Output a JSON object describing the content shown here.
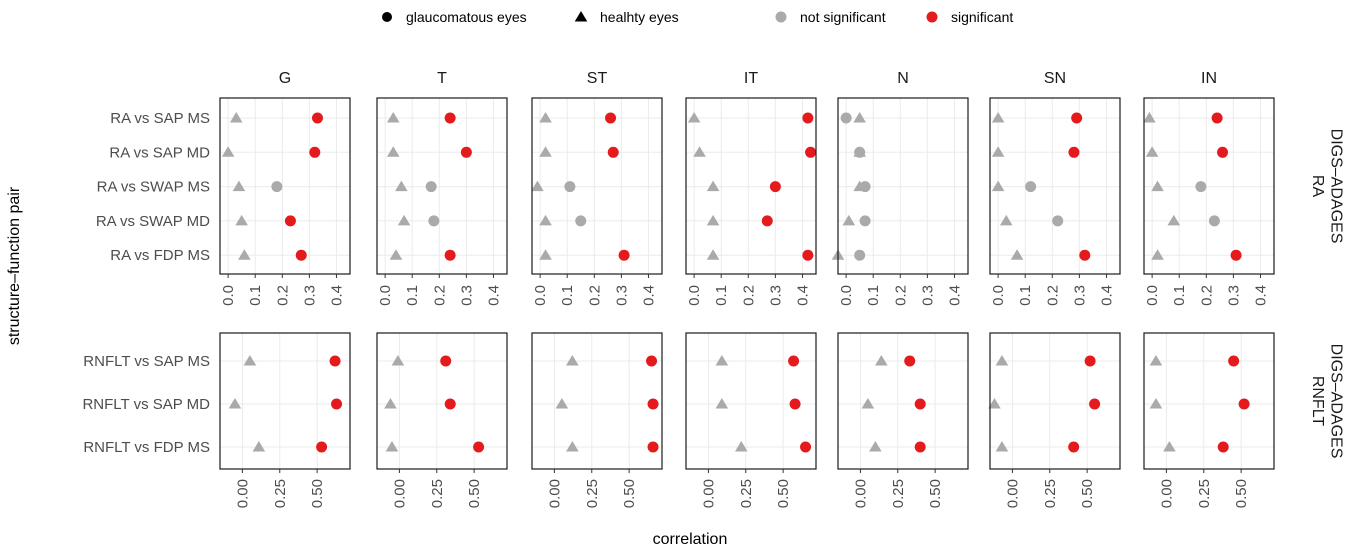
{
  "legend": {
    "shape_items": [
      {
        "label": "glaucomatous eyes",
        "shape": "circle"
      },
      {
        "label": "healhty eyes",
        "shape": "triangle"
      }
    ],
    "color_items": [
      {
        "label": "not significant",
        "color": "#aaaaaa"
      },
      {
        "label": "significant",
        "color": "#e41a1c"
      }
    ],
    "placement": "top"
  },
  "colors": {
    "not_significant": "#aaaaaa",
    "significant": "#e41a1c"
  },
  "chart_data": {
    "type": "scatter",
    "facet_layout": "grid",
    "x_title": "correlation",
    "y_title": "structure–function pair",
    "columns": [
      "G",
      "T",
      "ST",
      "IT",
      "N",
      "SN",
      "IN"
    ],
    "grid": true,
    "rows": [
      {
        "strip": [
          "DIGS–ADAGES",
          "RA"
        ],
        "pairs": [
          "RA vs SAP MS",
          "RA vs SAP MD",
          "RA vs SWAP MS",
          "RA vs SWAP MD",
          "RA vs FDP MS"
        ],
        "xlim": [
          -0.03,
          0.45
        ],
        "ticks": [
          0,
          0.1,
          0.2,
          0.3,
          0.4
        ],
        "tick_labels": [
          "0.0",
          "0.1",
          "0.2",
          "0.3",
          "0.4"
        ],
        "panels": [
          {
            "healthy": [
              [
                0.03,
                false
              ],
              [
                0.0,
                false
              ],
              [
                0.04,
                false
              ],
              [
                0.05,
                false
              ],
              [
                0.06,
                false
              ]
            ],
            "glaucomatous": [
              [
                0.33,
                true
              ],
              [
                0.32,
                true
              ],
              [
                0.18,
                false
              ],
              [
                0.23,
                true
              ],
              [
                0.27,
                true
              ]
            ]
          },
          {
            "healthy": [
              [
                0.03,
                false
              ],
              [
                0.03,
                false
              ],
              [
                0.06,
                false
              ],
              [
                0.07,
                false
              ],
              [
                0.04,
                false
              ]
            ],
            "glaucomatous": [
              [
                0.24,
                true
              ],
              [
                0.3,
                true
              ],
              [
                0.17,
                false
              ],
              [
                0.18,
                false
              ],
              [
                0.24,
                true
              ]
            ]
          },
          {
            "healthy": [
              [
                0.02,
                false
              ],
              [
                0.02,
                false
              ],
              [
                -0.01,
                false
              ],
              [
                0.02,
                false
              ],
              [
                0.02,
                false
              ]
            ],
            "glaucomatous": [
              [
                0.26,
                true
              ],
              [
                0.27,
                true
              ],
              [
                0.11,
                false
              ],
              [
                0.15,
                false
              ],
              [
                0.31,
                true
              ]
            ]
          },
          {
            "healthy": [
              [
                0.0,
                false
              ],
              [
                0.02,
                false
              ],
              [
                0.07,
                false
              ],
              [
                0.07,
                false
              ],
              [
                0.07,
                false
              ]
            ],
            "glaucomatous": [
              [
                0.42,
                true
              ],
              [
                0.43,
                true
              ],
              [
                0.3,
                true
              ],
              [
                0.27,
                true
              ],
              [
                0.42,
                true
              ]
            ]
          },
          {
            "healthy": [
              [
                0.05,
                false
              ],
              [
                0.05,
                false
              ],
              [
                0.05,
                false
              ],
              [
                0.01,
                false
              ],
              [
                -0.03,
                false
              ]
            ],
            "glaucomatous": [
              [
                -0.0,
                false
              ],
              [
                0.05,
                false
              ],
              [
                0.07,
                false
              ],
              [
                0.07,
                false
              ],
              [
                0.05,
                false
              ]
            ]
          },
          {
            "healthy": [
              [
                0.0,
                false
              ],
              [
                0.0,
                false
              ],
              [
                0.0,
                false
              ],
              [
                0.03,
                false
              ],
              [
                0.07,
                false
              ]
            ],
            "glaucomatous": [
              [
                0.29,
                true
              ],
              [
                0.28,
                true
              ],
              [
                0.12,
                false
              ],
              [
                0.22,
                false
              ],
              [
                0.32,
                true
              ]
            ]
          },
          {
            "healthy": [
              [
                -0.01,
                false
              ],
              [
                0.0,
                false
              ],
              [
                0.02,
                false
              ],
              [
                0.08,
                false
              ],
              [
                0.02,
                false
              ]
            ],
            "glaucomatous": [
              [
                0.24,
                true
              ],
              [
                0.26,
                true
              ],
              [
                0.18,
                false
              ],
              [
                0.23,
                false
              ],
              [
                0.31,
                true
              ]
            ]
          }
        ]
      },
      {
        "strip": [
          "DIGS–ADAGES",
          "RNFLT"
        ],
        "pairs": [
          "RNFLT vs SAP MS",
          "RNFLT vs SAP MD",
          "RNFLT vs FDP MS"
        ],
        "xlim": [
          -0.15,
          0.72
        ],
        "ticks": [
          0,
          0.25,
          0.5
        ],
        "tick_labels": [
          "0.00",
          "0.25",
          "0.50"
        ],
        "panels": [
          {
            "healthy": [
              [
                0.05,
                false
              ],
              [
                -0.05,
                false
              ],
              [
                0.11,
                false
              ]
            ],
            "glaucomatous": [
              [
                0.62,
                true
              ],
              [
                0.63,
                true
              ],
              [
                0.53,
                true
              ]
            ]
          },
          {
            "healthy": [
              [
                -0.01,
                false
              ],
              [
                -0.06,
                false
              ],
              [
                -0.05,
                false
              ]
            ],
            "glaucomatous": [
              [
                0.31,
                true
              ],
              [
                0.34,
                true
              ],
              [
                0.53,
                true
              ]
            ]
          },
          {
            "healthy": [
              [
                0.12,
                false
              ],
              [
                0.05,
                false
              ],
              [
                0.12,
                false
              ]
            ],
            "glaucomatous": [
              [
                0.65,
                true
              ],
              [
                0.66,
                true
              ],
              [
                0.66,
                true
              ]
            ]
          },
          {
            "healthy": [
              [
                0.09,
                false
              ],
              [
                0.09,
                false
              ],
              [
                0.22,
                false
              ]
            ],
            "glaucomatous": [
              [
                0.57,
                true
              ],
              [
                0.58,
                true
              ],
              [
                0.65,
                true
              ]
            ]
          },
          {
            "healthy": [
              [
                0.14,
                false
              ],
              [
                0.05,
                false
              ],
              [
                0.1,
                false
              ]
            ],
            "glaucomatous": [
              [
                0.33,
                true
              ],
              [
                0.4,
                true
              ],
              [
                0.4,
                true
              ]
            ]
          },
          {
            "healthy": [
              [
                -0.07,
                false
              ],
              [
                -0.12,
                false
              ],
              [
                -0.07,
                false
              ]
            ],
            "glaucomatous": [
              [
                0.52,
                true
              ],
              [
                0.55,
                true
              ],
              [
                0.41,
                true
              ]
            ]
          },
          {
            "healthy": [
              [
                -0.07,
                false
              ],
              [
                -0.07,
                false
              ],
              [
                0.02,
                false
              ]
            ],
            "glaucomatous": [
              [
                0.45,
                true
              ],
              [
                0.52,
                true
              ],
              [
                0.38,
                true
              ]
            ]
          }
        ]
      }
    ]
  }
}
